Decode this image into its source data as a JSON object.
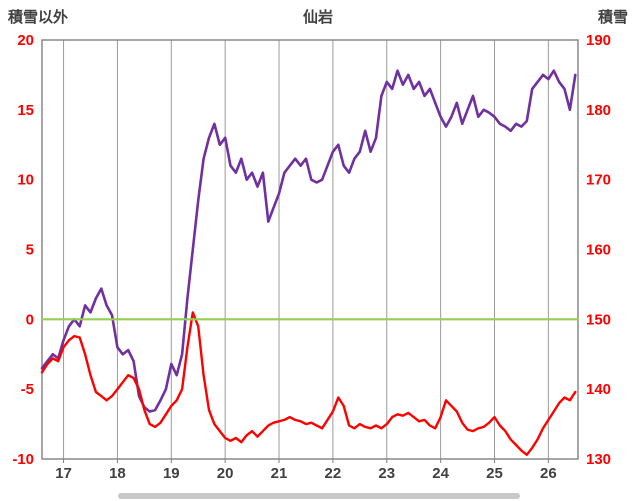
{
  "header": {
    "left_axis_title": "積雪以外",
    "title": "仙岩",
    "right_axis_title": "積雪"
  },
  "chart_data": {
    "type": "line",
    "title": "仙岩",
    "left_axis": {
      "label": "積雪以外",
      "min": -10,
      "max": 20,
      "ticks": [
        20,
        15,
        10,
        5,
        0,
        -5,
        -10
      ],
      "tick_color": "#FF0000"
    },
    "right_axis": {
      "label": "積雪",
      "min": 130,
      "max": 190,
      "ticks": [
        190,
        180,
        170,
        160,
        150,
        140,
        130
      ],
      "tick_color": "#FF0000"
    },
    "x_axis": {
      "min": 16.6,
      "max": 26.55,
      "ticks": [
        17,
        18,
        19,
        20,
        21,
        22,
        23,
        24,
        25,
        26
      ],
      "tick_color": "#404040"
    },
    "grid": {
      "vertical": true,
      "horizontal": false,
      "color": "#9b9b9b",
      "border_color": "#808080"
    },
    "series": [
      {
        "name": "積雪",
        "axis": "right",
        "color": "#7030A0",
        "width": 2.6,
        "x_start": 16.6,
        "x_step": 0.1,
        "values": [
          143,
          144,
          145,
          144.4,
          147,
          149,
          150,
          149,
          152,
          151,
          153,
          154.4,
          152,
          150.6,
          146,
          145,
          145.6,
          144,
          139,
          137.4,
          136.8,
          137,
          138.4,
          140,
          143.6,
          142,
          145,
          153,
          160,
          167,
          173,
          176,
          178,
          175,
          176,
          172,
          171,
          173,
          170,
          171,
          169,
          171,
          164,
          166,
          168,
          171,
          172,
          173,
          172,
          173,
          170,
          169.6,
          170,
          172,
          174,
          175,
          172,
          171,
          173,
          174,
          177,
          174,
          176,
          182,
          184,
          183,
          185.6,
          183.6,
          185,
          183,
          184,
          182,
          183,
          181,
          179,
          177.6,
          179,
          181,
          178,
          180,
          182,
          179,
          180,
          179.6,
          179,
          178,
          177.6,
          177,
          178,
          177.6,
          178.4,
          183,
          184,
          185,
          184.4,
          185.6,
          184,
          183,
          180,
          185
        ]
      },
      {
        "name": "積雪以外",
        "axis": "left",
        "color": "#FF0000",
        "width": 2.4,
        "x_start": 16.6,
        "x_step": 0.1,
        "values": [
          -3.8,
          -3.2,
          -2.8,
          -3.0,
          -2.0,
          -1.5,
          -1.2,
          -1.3,
          -2.5,
          -4.0,
          -5.2,
          -5.5,
          -5.8,
          -5.5,
          -5.0,
          -4.5,
          -4.0,
          -4.2,
          -5.0,
          -6.5,
          -7.5,
          -7.7,
          -7.4,
          -6.8,
          -6.2,
          -5.8,
          -5.0,
          -2.0,
          0.5,
          -0.5,
          -4.0,
          -6.5,
          -7.5,
          -8.0,
          -8.5,
          -8.7,
          -8.5,
          -8.8,
          -8.3,
          -8.0,
          -8.4,
          -8.0,
          -7.6,
          -7.4,
          -7.3,
          -7.2,
          -7.0,
          -7.2,
          -7.3,
          -7.5,
          -7.4,
          -7.6,
          -7.8,
          -7.2,
          -6.6,
          -5.6,
          -6.2,
          -7.6,
          -7.8,
          -7.5,
          -7.7,
          -7.8,
          -7.6,
          -7.8,
          -7.5,
          -7.0,
          -6.8,
          -6.9,
          -6.7,
          -7.0,
          -7.3,
          -7.2,
          -7.6,
          -7.8,
          -7.0,
          -5.8,
          -6.2,
          -6.6,
          -7.4,
          -7.9,
          -8.0,
          -7.8,
          -7.7,
          -7.4,
          -7.0,
          -7.6,
          -8.0,
          -8.6,
          -9.0,
          -9.4,
          -9.7,
          -9.2,
          -8.6,
          -7.8,
          -7.2,
          -6.6,
          -6.0,
          -5.6,
          -5.8,
          -5.2
        ]
      },
      {
        "name": "zero-line",
        "axis": "left",
        "color": "#92D050",
        "width": 2.2,
        "x": [
          16.6,
          26.55
        ],
        "values": [
          0,
          0
        ]
      }
    ]
  },
  "scrollbar": {
    "present": "true"
  }
}
